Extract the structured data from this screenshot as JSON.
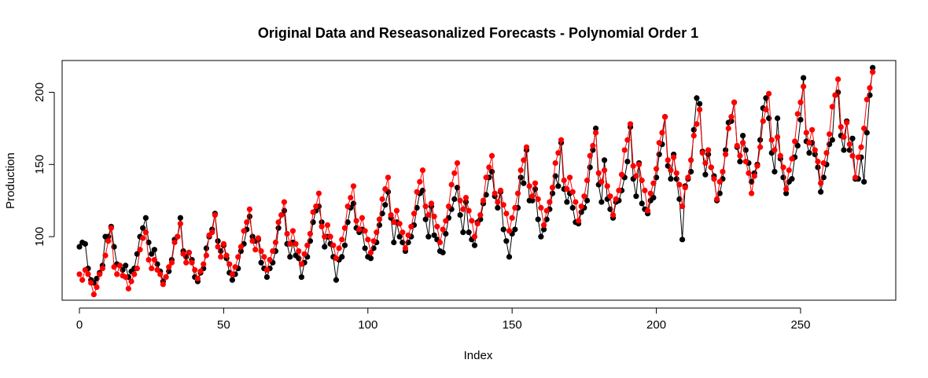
{
  "chart_data": {
    "type": "line",
    "title": "Original Data and Reseasonalized Forecasts - Polynomial Order 1",
    "xlabel": "Index",
    "ylabel": "Production",
    "xlim": [
      -6,
      283
    ],
    "ylim": [
      56,
      222
    ],
    "x_ticks": [
      0,
      50,
      100,
      150,
      200,
      250
    ],
    "y_ticks": [
      100,
      150,
      200
    ],
    "x_tick_labels": [
      "0",
      "50",
      "100",
      "150",
      "200",
      "250"
    ],
    "y_tick_labels": [
      "100",
      "150",
      "200"
    ],
    "grid": false,
    "series": [
      {
        "color": "#000000",
        "x_start": 0,
        "values": [
          93,
          96,
          95,
          78,
          70,
          68,
          71,
          75,
          80,
          100,
          100,
          107,
          93,
          81,
          80,
          77,
          80,
          72,
          76,
          78,
          88,
          100,
          106,
          113,
          96,
          88,
          91,
          81,
          76,
          69,
          72,
          76,
          84,
          98,
          100,
          113,
          90,
          86,
          89,
          84,
          72,
          69,
          75,
          78,
          92,
          100,
          105,
          116,
          97,
          90,
          94,
          85,
          75,
          70,
          74,
          78,
          90,
          95,
          105,
          114,
          100,
          97,
          98,
          82,
          78,
          72,
          78,
          82,
          90,
          106,
          115,
          118,
          95,
          86,
          96,
          87,
          85,
          72,
          82,
          86,
          97,
          110,
          118,
          121,
          110,
          93,
          100,
          95,
          86,
          70,
          84,
          86,
          94,
          110,
          120,
          123,
          106,
          103,
          105,
          92,
          86,
          85,
          92,
          96,
          108,
          116,
          122,
          131,
          113,
          96,
          110,
          100,
          96,
          90,
          96,
          100,
          108,
          120,
          130,
          132,
          112,
          100,
          121,
          101,
          98,
          90,
          89,
          102,
          113,
          119,
          126,
          134,
          115,
          103,
          124,
          103,
          98,
          94,
          110,
          112,
          123,
          129,
          141,
          145,
          128,
          120,
          131,
          105,
          97,
          86,
          102,
          105,
          120,
          141,
          137,
          160,
          125,
          125,
          133,
          112,
          100,
          105,
          112,
          119,
          130,
          142,
          135,
          165,
          133,
          124,
          130,
          120,
          110,
          109,
          117,
          120,
          125,
          148,
          160,
          175,
          136,
          124,
          153,
          126,
          119,
          113,
          124,
          125,
          132,
          141,
          152,
          176,
          140,
          128,
          151,
          123,
          119,
          116,
          125,
          127,
          141,
          157,
          164,
          183,
          149,
          140,
          157,
          140,
          126,
          98,
          135,
          140,
          145,
          174,
          196,
          192,
          159,
          143,
          157,
          148,
          142,
          125,
          130,
          140,
          160,
          179,
          180,
          193,
          162,
          152,
          170,
          160,
          151,
          138,
          144,
          150,
          167,
          189,
          196,
          182,
          158,
          145,
          182,
          154,
          141,
          130,
          138,
          140,
          155,
          163,
          181,
          210,
          166,
          158,
          165,
          157,
          148,
          131,
          141,
          150,
          164,
          167,
          198,
          200,
          170,
          160,
          180,
          160,
          168,
          140,
          140,
          155,
          138,
          172,
          198,
          217
        ]
      },
      {
        "color": "#ff0000",
        "x_start": 0,
        "values": [
          74,
          70,
          77,
          74,
          68,
          60,
          65,
          74,
          78,
          87,
          97,
          106,
          79,
          74,
          80,
          73,
          72,
          64,
          69,
          74,
          78,
          91,
          99,
          103,
          84,
          78,
          84,
          77,
          74,
          67,
          72,
          79,
          82,
          96,
          100,
          109,
          88,
          82,
          89,
          82,
          77,
          71,
          76,
          81,
          87,
          101,
          103,
          115,
          93,
          86,
          95,
          87,
          81,
          74,
          79,
          86,
          93,
          104,
          110,
          119,
          97,
          91,
          99,
          90,
          86,
          77,
          84,
          90,
          96,
          110,
          115,
          124,
          102,
          95,
          104,
          95,
          90,
          81,
          88,
          94,
          102,
          117,
          121,
          130,
          107,
          100,
          108,
          100,
          94,
          85,
          92,
          98,
          106,
          121,
          127,
          135,
          111,
          105,
          113,
          104,
          98,
          89,
          97,
          103,
          112,
          126,
          133,
          141,
          115,
          110,
          118,
          109,
          103,
          92,
          101,
          107,
          116,
          131,
          138,
          146,
          121,
          115,
          123,
          114,
          107,
          96,
          105,
          111,
          121,
          136,
          144,
          151,
          125,
          119,
          127,
          118,
          111,
          100,
          109,
          115,
          125,
          141,
          148,
          156,
          130,
          124,
          132,
          122,
          116,
          104,
          113,
          120,
          130,
          146,
          153,
          162,
          135,
          128,
          137,
          126,
          120,
          108,
          118,
          124,
          134,
          151,
          158,
          167,
          139,
          133,
          141,
          131,
          124,
          111,
          121,
          128,
          139,
          156,
          163,
          172,
          144,
          138,
          146,
          135,
          128,
          115,
          126,
          132,
          143,
          160,
          167,
          178,
          149,
          142,
          150,
          139,
          132,
          118,
          130,
          137,
          147,
          165,
          172,
          183,
          153,
          146,
          155,
          144,
          136,
          121,
          134,
          141,
          153,
          170,
          178,
          188,
          158,
          151,
          160,
          148,
          140,
          126,
          138,
          145,
          157,
          175,
          183,
          193,
          163,
          156,
          165,
          152,
          144,
          130,
          142,
          149,
          162,
          180,
          188,
          199,
          167,
          160,
          169,
          156,
          148,
          133,
          146,
          154,
          166,
          185,
          193,
          204,
          172,
          165,
          174,
          160,
          152,
          137,
          151,
          158,
          171,
          190,
          198,
          209,
          176,
          169,
          179,
          164,
          156,
          141,
          155,
          162,
          175,
          195,
          203,
          214
        ]
      }
    ]
  }
}
